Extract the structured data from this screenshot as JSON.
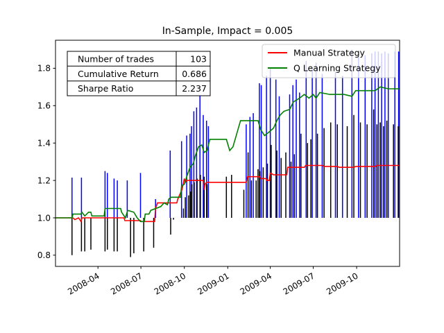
{
  "chart_data": {
    "type": "line",
    "title": "In-Sample, Impact = 0.005",
    "xlabel": "",
    "ylabel": "",
    "x_start": "2008-01-02",
    "x_end": "2009-12-31",
    "xlim": [
      "2008-01-02",
      "2009-12-31"
    ],
    "ylim": [
      0.74,
      1.95
    ],
    "grid": false,
    "x_ticks": [
      {
        "date": "2008-04-01",
        "label": "2008-04"
      },
      {
        "date": "2008-07-01",
        "label": "2008-07"
      },
      {
        "date": "2008-10-01",
        "label": "2008-10"
      },
      {
        "date": "2009-01-01",
        "label": "2009-01"
      },
      {
        "date": "2009-04-01",
        "label": "2009-04"
      },
      {
        "date": "2009-07-01",
        "label": "2009-07"
      },
      {
        "date": "2009-10-01",
        "label": "2009-10"
      }
    ],
    "y_ticks": [
      0.8,
      1.0,
      1.2,
      1.4,
      1.6,
      1.8
    ],
    "y_tick_labels": [
      "0.8",
      "1.0",
      "1.2",
      "1.4",
      "1.6",
      "1.8"
    ],
    "legend": {
      "placement": "top-right",
      "entries": [
        {
          "label": "Manual Strategy",
          "color": "#ff0000"
        },
        {
          "label": "Q Learning Strategy",
          "color": "#008000"
        }
      ]
    },
    "stats_table": {
      "placement": "top-left",
      "rows": [
        {
          "label": "Number of trades",
          "value": "103"
        },
        {
          "label": "Cumulative Return",
          "value": "0.686"
        },
        {
          "label": "Sharpe Ratio",
          "value": "2.237"
        }
      ]
    },
    "series": [
      {
        "name": "Manual Strategy",
        "color": "#ff0000",
        "points": [
          [
            "2008-01-02",
            1.0
          ],
          [
            "2008-02-08",
            1.0
          ],
          [
            "2008-02-12",
            0.99
          ],
          [
            "2008-02-20",
            1.0
          ],
          [
            "2008-02-25",
            0.98
          ],
          [
            "2008-02-27",
            1.0
          ],
          [
            "2008-03-17",
            1.0
          ],
          [
            "2008-05-26",
            1.0
          ],
          [
            "2008-05-28",
            0.985
          ],
          [
            "2008-06-30",
            0.985
          ],
          [
            "2008-07-02",
            0.98
          ],
          [
            "2008-07-30",
            0.98
          ],
          [
            "2008-08-01",
            1.05
          ],
          [
            "2008-08-05",
            1.08
          ],
          [
            "2008-09-15",
            1.08
          ],
          [
            "2008-09-17",
            1.1
          ],
          [
            "2008-09-26",
            1.15
          ],
          [
            "2008-10-01",
            1.21
          ],
          [
            "2008-10-03",
            1.19
          ],
          [
            "2008-10-06",
            1.2
          ],
          [
            "2008-11-10",
            1.2
          ],
          [
            "2008-11-12",
            1.15
          ],
          [
            "2008-11-14",
            1.18
          ],
          [
            "2008-11-17",
            1.19
          ],
          [
            "2009-02-09",
            1.19
          ],
          [
            "2009-02-12",
            1.22
          ],
          [
            "2009-03-10",
            1.22
          ],
          [
            "2009-03-12",
            1.21
          ],
          [
            "2009-03-23",
            1.21
          ],
          [
            "2009-03-25",
            1.2
          ],
          [
            "2009-03-30",
            1.2
          ],
          [
            "2009-04-01",
            1.24
          ],
          [
            "2009-04-08",
            1.23
          ],
          [
            "2009-05-06",
            1.23
          ],
          [
            "2009-05-08",
            1.27
          ],
          [
            "2009-06-12",
            1.27
          ],
          [
            "2009-06-15",
            1.28
          ],
          [
            "2009-07-21",
            1.28
          ],
          [
            "2009-07-23",
            1.275
          ],
          [
            "2009-08-21",
            1.275
          ],
          [
            "2009-08-25",
            1.27
          ],
          [
            "2009-09-25",
            1.27
          ],
          [
            "2009-09-29",
            1.275
          ],
          [
            "2009-11-10",
            1.275
          ],
          [
            "2009-11-12",
            1.28
          ],
          [
            "2009-12-31",
            1.28
          ]
        ]
      },
      {
        "name": "Q Learning Strategy",
        "color": "#008000",
        "points": [
          [
            "2008-01-02",
            1.0
          ],
          [
            "2008-02-06",
            1.0
          ],
          [
            "2008-02-08",
            1.02
          ],
          [
            "2008-02-25",
            1.02
          ],
          [
            "2008-02-27",
            1.03
          ],
          [
            "2008-03-04",
            1.01
          ],
          [
            "2008-03-12",
            1.03
          ],
          [
            "2008-03-17",
            1.03
          ],
          [
            "2008-03-19",
            1.01
          ],
          [
            "2008-04-14",
            1.01
          ],
          [
            "2008-04-16",
            1.05
          ],
          [
            "2008-05-19",
            1.05
          ],
          [
            "2008-05-21",
            1.03
          ],
          [
            "2008-05-29",
            1.0
          ],
          [
            "2008-06-03",
            1.04
          ],
          [
            "2008-06-16",
            1.03
          ],
          [
            "2008-06-23",
            1.0
          ],
          [
            "2008-06-30",
            0.98
          ],
          [
            "2008-07-08",
            0.98
          ],
          [
            "2008-07-10",
            1.02
          ],
          [
            "2008-07-18",
            1.02
          ],
          [
            "2008-07-22",
            1.04
          ],
          [
            "2008-08-12",
            1.06
          ],
          [
            "2008-08-19",
            1.08
          ],
          [
            "2008-08-26",
            1.07
          ],
          [
            "2008-08-29",
            1.1
          ],
          [
            "2008-09-03",
            1.11
          ],
          [
            "2008-09-23",
            1.11
          ],
          [
            "2008-09-25",
            1.17
          ],
          [
            "2008-10-01",
            1.18
          ],
          [
            "2008-10-06",
            1.22
          ],
          [
            "2008-10-13",
            1.27
          ],
          [
            "2008-10-20",
            1.29
          ],
          [
            "2008-10-24",
            1.33
          ],
          [
            "2008-10-31",
            1.38
          ],
          [
            "2008-11-07",
            1.39
          ],
          [
            "2008-11-12",
            1.35
          ],
          [
            "2008-11-18",
            1.36
          ],
          [
            "2008-11-24",
            1.42
          ],
          [
            "2008-12-29",
            1.42
          ],
          [
            "2009-01-05",
            1.36
          ],
          [
            "2009-01-12",
            1.38
          ],
          [
            "2009-01-20",
            1.45
          ],
          [
            "2009-01-28",
            1.52
          ],
          [
            "2009-03-06",
            1.52
          ],
          [
            "2009-03-12",
            1.47
          ],
          [
            "2009-03-20",
            1.44
          ],
          [
            "2009-03-30",
            1.46
          ],
          [
            "2009-04-08",
            1.48
          ],
          [
            "2009-04-15",
            1.52
          ],
          [
            "2009-04-22",
            1.55
          ],
          [
            "2009-04-30",
            1.57
          ],
          [
            "2009-05-12",
            1.58
          ],
          [
            "2009-05-20",
            1.62
          ],
          [
            "2009-06-02",
            1.64
          ],
          [
            "2009-06-12",
            1.66
          ],
          [
            "2009-06-22",
            1.64
          ],
          [
            "2009-07-01",
            1.66
          ],
          [
            "2009-07-07",
            1.64
          ],
          [
            "2009-07-15",
            1.67
          ],
          [
            "2009-08-05",
            1.66
          ],
          [
            "2009-08-24",
            1.66
          ],
          [
            "2009-09-04",
            1.66
          ],
          [
            "2009-09-21",
            1.65
          ],
          [
            "2009-09-29",
            1.68
          ],
          [
            "2009-10-30",
            1.68
          ],
          [
            "2009-11-09",
            1.68
          ],
          [
            "2009-11-20",
            1.7
          ],
          [
            "2009-12-07",
            1.69
          ],
          [
            "2009-12-31",
            1.69
          ]
        ]
      }
    ],
    "long_entries": {
      "color": "#0000ff",
      "ymin": 1.0,
      "dates": [
        "2008-02-06",
        "2008-02-26",
        "2008-04-16",
        "2008-04-21",
        "2008-05-05",
        "2008-05-12",
        "2008-06-02",
        "2008-06-30",
        "2008-08-01",
        "2008-09-01",
        "2008-09-25",
        "2008-10-06",
        "2008-10-13",
        "2008-10-16",
        "2008-10-21",
        "2008-10-27",
        "2008-11-03",
        "2008-11-10",
        "2008-11-17",
        "2008-11-21",
        "2009-02-09",
        "2009-02-17",
        "2009-02-24",
        "2009-03-09",
        "2009-03-13",
        "2009-03-24",
        "2009-04-01",
        "2009-04-13",
        "2009-04-20",
        "2009-05-12",
        "2009-05-19",
        "2009-05-26",
        "2009-06-02",
        "2009-06-16",
        "2009-06-29",
        "2009-07-07",
        "2009-07-20",
        "2009-08-17",
        "2009-09-01",
        "2009-09-21",
        "2009-10-05",
        "2009-10-19",
        "2009-11-02",
        "2009-11-09",
        "2009-11-16",
        "2009-11-23",
        "2009-11-30",
        "2009-12-07",
        "2009-12-21",
        "2009-12-29"
      ],
      "ymax": [
        1.215,
        1.215,
        1.25,
        1.24,
        1.21,
        1.2,
        1.2,
        1.24,
        1.1,
        1.36,
        1.41,
        1.44,
        1.45,
        1.49,
        1.57,
        1.59,
        1.69,
        1.55,
        1.52,
        1.49,
        1.5,
        1.54,
        1.56,
        1.72,
        1.71,
        1.76,
        1.8,
        1.74,
        1.65,
        1.66,
        1.71,
        1.74,
        1.67,
        1.84,
        1.8,
        1.83,
        1.77,
        1.78,
        1.76,
        1.9,
        1.86,
        1.87,
        1.88,
        1.89,
        1.89,
        1.88,
        1.89,
        1.88,
        1.89,
        1.89
      ]
    },
    "short_entries": {
      "color": "#000000",
      "ymax": 1.0,
      "dates": [
        "2008-02-06",
        "2008-02-26",
        "2008-03-04",
        "2008-03-17",
        "2008-04-16",
        "2008-04-21",
        "2008-05-05",
        "2008-05-12",
        "2008-06-09",
        "2008-06-16",
        "2008-07-07",
        "2008-07-28",
        "2008-09-02",
        "2008-09-08",
        "2008-09-29",
        "2008-10-03",
        "2008-10-10",
        "2008-10-14",
        "2008-10-17",
        "2008-10-22",
        "2008-10-28",
        "2008-11-04",
        "2008-11-12",
        "2008-11-18",
        "2008-12-29",
        "2009-01-09",
        "2009-02-04",
        "2009-02-13",
        "2009-02-20",
        "2009-03-02",
        "2009-03-06",
        "2009-03-10",
        "2009-03-17",
        "2009-03-26",
        "2009-04-03",
        "2009-04-15",
        "2009-04-24",
        "2009-05-04",
        "2009-05-15",
        "2009-05-22",
        "2009-06-05",
        "2009-06-19",
        "2009-06-26",
        "2009-07-10",
        "2009-07-24",
        "2009-08-07",
        "2009-08-21",
        "2009-09-11",
        "2009-09-25",
        "2009-10-09",
        "2009-10-23",
        "2009-11-06",
        "2009-11-13",
        "2009-11-20",
        "2009-11-27",
        "2009-12-04",
        "2009-12-18",
        "2009-12-28"
      ],
      "ymin": [
        0.8,
        0.82,
        0.82,
        0.83,
        0.82,
        0.83,
        0.82,
        0.82,
        0.79,
        0.81,
        0.82,
        0.84,
        0.91,
        0.99,
        1.05,
        1.11,
        1.12,
        1.14,
        1.18,
        1.19,
        1.21,
        1.23,
        1.22,
        1.18,
        1.22,
        1.23,
        1.15,
        1.35,
        1.2,
        1.2,
        1.26,
        1.25,
        1.27,
        1.29,
        1.39,
        1.36,
        1.32,
        1.35,
        1.3,
        1.34,
        1.45,
        1.4,
        1.42,
        1.45,
        1.48,
        1.51,
        1.5,
        1.49,
        1.55,
        1.51,
        1.5,
        1.58,
        1.5,
        1.51,
        1.49,
        1.52,
        1.5,
        1.49
      ]
    }
  }
}
